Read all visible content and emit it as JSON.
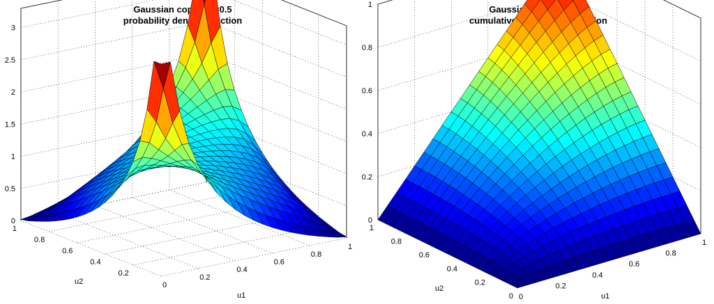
{
  "chart_data": [
    {
      "type": "surface",
      "title": [
        "Gaussian copula ρ=0.5",
        "probability density function"
      ],
      "xlabel": "u1",
      "ylabel": "u2",
      "zlabel": "",
      "rho": 0.5,
      "function": "pdf",
      "grid_points": 21,
      "x_range": [
        0,
        1
      ],
      "y_range": [
        0,
        1
      ],
      "zlim": [
        0,
        3.3
      ],
      "x_ticks": [
        {
          "v": 0,
          "label": "0"
        },
        {
          "v": 0.2,
          "label": "0.2"
        },
        {
          "v": 0.4,
          "label": "0.4"
        },
        {
          "v": 0.6,
          "label": "0.6"
        },
        {
          "v": 0.8,
          "label": "0.8"
        },
        {
          "v": 1,
          "label": "1"
        }
      ],
      "y_ticks": [
        {
          "v": 0.2,
          "label": "0.2"
        },
        {
          "v": 0.4,
          "label": "0.4"
        },
        {
          "v": 0.6,
          "label": "0.6"
        },
        {
          "v": 0.8,
          "label": "0.8"
        },
        {
          "v": 1,
          "label": "1"
        }
      ],
      "z_ticks": [
        {
          "v": 0,
          "label": "0"
        },
        {
          "v": 0.5,
          "label": "0.5"
        },
        {
          "v": 1,
          "label": "1"
        },
        {
          "v": 1.5,
          "label": "1.5"
        },
        {
          "v": 2,
          "label": "2"
        },
        {
          "v": 2.5,
          "label": "2.5"
        },
        {
          "v": 3,
          "label": "3"
        }
      ],
      "grid": true,
      "colormap": "jet"
    },
    {
      "type": "surface",
      "title": [
        "Gaussian copula ρ=0.5",
        "cumulative distribution function"
      ],
      "xlabel": "u1",
      "ylabel": "u2",
      "zlabel": "",
      "rho": 0.5,
      "function": "cdf",
      "grid_points": 21,
      "x_range": [
        0,
        1
      ],
      "y_range": [
        0,
        1
      ],
      "zlim": [
        0,
        1
      ],
      "x_ticks": [
        {
          "v": 0,
          "label": "0"
        },
        {
          "v": 0.2,
          "label": "0.2"
        },
        {
          "v": 0.4,
          "label": "0.4"
        },
        {
          "v": 0.6,
          "label": "0.6"
        },
        {
          "v": 0.8,
          "label": "0.8"
        },
        {
          "v": 1,
          "label": "1"
        }
      ],
      "y_ticks": [
        {
          "v": 0,
          "label": "0"
        },
        {
          "v": 0.2,
          "label": "0.2"
        },
        {
          "v": 0.4,
          "label": "0.4"
        },
        {
          "v": 0.6,
          "label": "0.6"
        },
        {
          "v": 0.8,
          "label": "0.8"
        },
        {
          "v": 1,
          "label": "1"
        }
      ],
      "z_ticks": [
        {
          "v": 0,
          "label": "0"
        },
        {
          "v": 0.2,
          "label": "0.2"
        },
        {
          "v": 0.4,
          "label": "0.4"
        },
        {
          "v": 0.6,
          "label": "0.6"
        },
        {
          "v": 0.8,
          "label": "0.8"
        },
        {
          "v": 1,
          "label": "1"
        }
      ],
      "grid": true,
      "colormap": "jet"
    }
  ]
}
